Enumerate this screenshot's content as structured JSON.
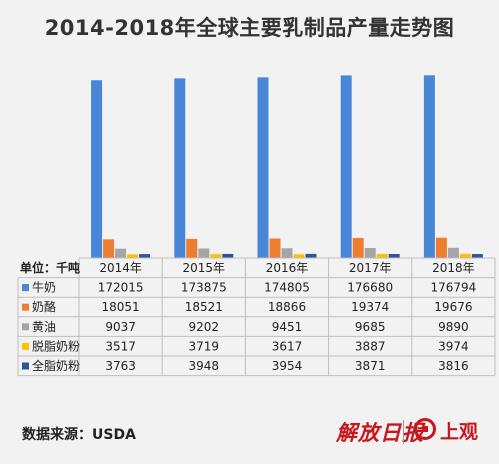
{
  "title": "2014-2018年全球主要乳制品产量走势图",
  "source": "数据来源：USDA",
  "logo_left": "解放日报",
  "logo_right": "上观",
  "chart_data": {
    "type": "bar",
    "unit_label": "单位：千吨",
    "categories": [
      "2014年",
      "2015年",
      "2016年",
      "2017年",
      "2018年"
    ],
    "ylim": [
      0,
      180000
    ],
    "grid": false,
    "legend": "table-left",
    "series": [
      {
        "name": "牛奶",
        "color": "#4a86d8",
        "values": [
          172015,
          173875,
          174805,
          176680,
          176794
        ]
      },
      {
        "name": "奶酪",
        "color": "#ed7d31",
        "values": [
          18051,
          18521,
          18866,
          19374,
          19676
        ]
      },
      {
        "name": "黄油",
        "color": "#a5a5a5",
        "values": [
          9037,
          9202,
          9451,
          9685,
          9890
        ]
      },
      {
        "name": "脱脂奶粉",
        "color": "#ffc000",
        "values": [
          3517,
          3719,
          3617,
          3887,
          3974
        ]
      },
      {
        "name": "全脂奶粉",
        "color": "#2f5597",
        "values": [
          3763,
          3948,
          3954,
          3871,
          3816
        ]
      }
    ]
  }
}
